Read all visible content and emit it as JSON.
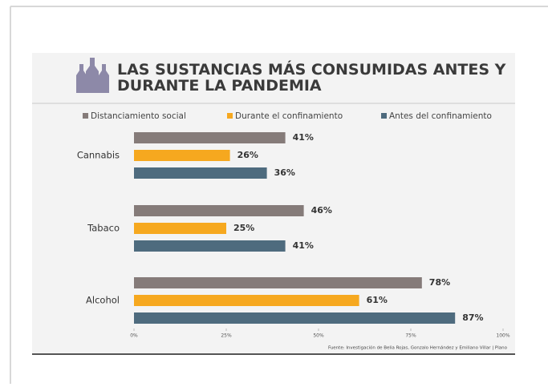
{
  "chart_data": {
    "type": "bar",
    "orientation": "horizontal",
    "title": "LAS SUSTANCIAS MÁS CONSUMIDAS ANTES Y DURANTE LA PANDEMIA",
    "categories": [
      "Cannabis",
      "Tabaco",
      "Alcohol"
    ],
    "series": [
      {
        "name": "Distanciamiento social",
        "color": "#857b79",
        "values": [
          41,
          46,
          78
        ],
        "value_labels": [
          "41%",
          "46%",
          "78%"
        ]
      },
      {
        "name": "Durante el confinamiento",
        "color": "#f6a81f",
        "values": [
          26,
          25,
          61
        ],
        "value_labels": [
          "26%",
          "25%",
          "61%"
        ]
      },
      {
        "name": "Antes del confinamiento",
        "color": "#4e6b7e",
        "values": [
          36,
          41,
          87
        ],
        "value_labels": [
          "36%",
          "41%",
          "87%"
        ]
      }
    ],
    "xlim": [
      0,
      100
    ],
    "xticks": [
      {
        "value": 0,
        "label": "0%"
      },
      {
        "value": 25,
        "label": "25%"
      },
      {
        "value": 50,
        "label": "50%"
      },
      {
        "value": 75,
        "label": "75%"
      },
      {
        "value": 100,
        "label": "100%"
      }
    ],
    "legend": "top",
    "source": "Fuente: Investigación de Belia Rojas, Gonzalo Hernández y Emiliano Villar | Plano"
  }
}
